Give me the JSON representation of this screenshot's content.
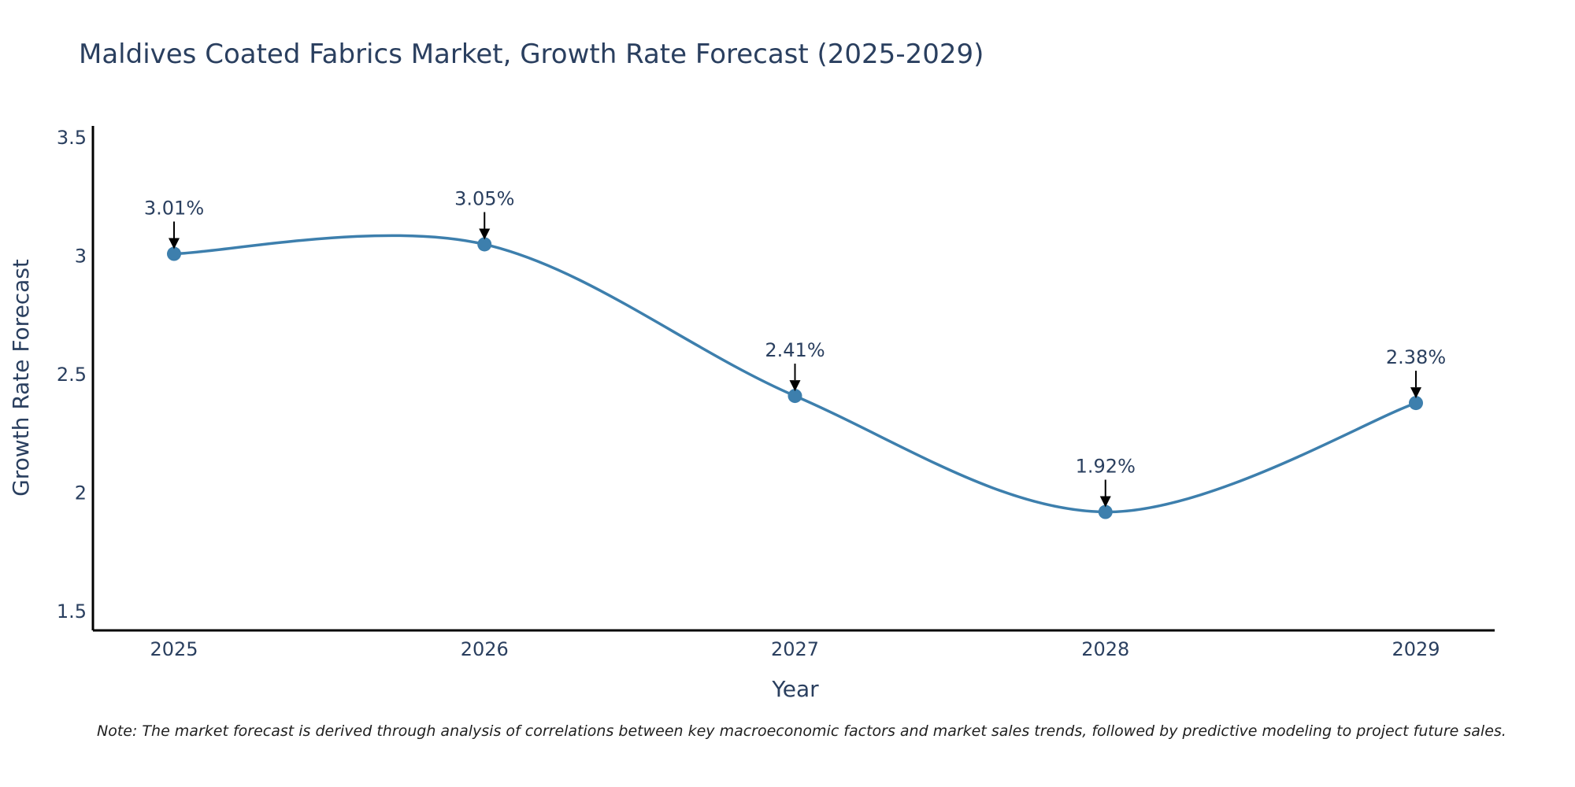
{
  "chart_data": {
    "type": "line",
    "title": "Maldives Coated Fabrics Market, Growth Rate Forecast (2025-2029)",
    "xlabel": "Year",
    "ylabel": "Growth Rate Forecast",
    "categories": [
      "2025",
      "2026",
      "2027",
      "2028",
      "2029"
    ],
    "values": [
      3.01,
      3.05,
      2.41,
      1.92,
      2.38
    ],
    "data_labels": [
      "3.01%",
      "3.05%",
      "2.41%",
      "1.92%",
      "2.38%"
    ],
    "y_ticks": [
      1.5,
      2,
      2.5,
      3,
      3.5
    ],
    "y_tick_labels": [
      "1.5",
      "2",
      "2.5",
      "3",
      "3.5"
    ],
    "ylim": [
      1.42,
      3.55
    ],
    "line_color": "#3d7fad",
    "marker_color": "#3d7fad",
    "line_shape": "spline",
    "grid": false
  },
  "note": "Note: The market forecast is derived through analysis of correlations between key macroeconomic factors and market sales trends, followed by predictive modeling to project future sales."
}
